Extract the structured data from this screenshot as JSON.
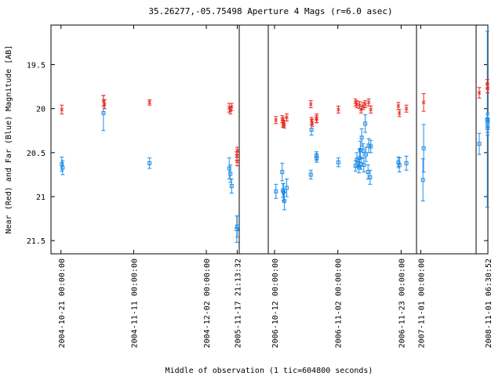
{
  "chart_data": {
    "type": "scatter",
    "title": "35.26277,-05.75498   Aperture 4 Mags (r=6.0 asec)",
    "xlabel": "Middle of observation (1 tic=604800 seconds)",
    "ylabel": "Near (Red) and Far (Blue) Magnitude [AB]",
    "ylim": [
      21.65,
      19.05
    ],
    "y_inverted": true,
    "yticks": [
      19.5,
      20,
      20.5,
      21,
      21.5
    ],
    "ytick_labels": [
      "19.5",
      "20",
      "20.5",
      "21",
      "21.5"
    ],
    "grid": false,
    "x_axis_note": "Broken time axis: four segments separated by vertical lines; x values are seconds from the start of each segment's first tick label.",
    "segments": [
      {
        "tick_labels": [
          "2004-10-21 00:00:00",
          "2004-11-11 00:00:00",
          "2004-12-02 00:00:00",
          "2005-11-17 21:13:32"
        ],
        "x_range_s": [
          -250000,
          4450000
        ],
        "ticks_s": [
          0,
          1814400,
          3628800,
          4400012
        ]
      },
      {
        "tick_labels": [
          "2006-10-12 00:00:00",
          "2006-11-02 00:00:00",
          "2006-11-23 00:00:00"
        ],
        "x_range_s": [
          -180000,
          4070000
        ],
        "ticks_s": [
          0,
          1814400,
          3628800
        ]
      },
      {
        "tick_labels": [
          "2007-11-01 00:00:00"
        ],
        "x_range_s": [
          -120000,
          1550000
        ],
        "ticks_s": [
          0
        ]
      },
      {
        "tick_labels": [
          "2008-11-01 06:30:52"
        ],
        "x_range_s": [
          -6000,
          0
        ],
        "ticks_s": [
          0
        ]
      }
    ],
    "series": [
      {
        "name": "Near (Red)",
        "color": "#e8281e",
        "marker": "x",
        "points": [
          {
            "s": 0,
            "x": 20000,
            "y": 20.01,
            "err": 0.05
          },
          {
            "s": 0,
            "x": 1060000,
            "y": 19.91,
            "err": 0.06
          },
          {
            "s": 0,
            "x": 1090000,
            "y": 19.95,
            "err": 0.05
          },
          {
            "s": 0,
            "x": 2210000,
            "y": 19.93,
            "err": 0.03
          },
          {
            "s": 0,
            "x": 4200000,
            "y": 19.99,
            "err": 0.05
          },
          {
            "s": 0,
            "x": 4230000,
            "y": 20.02,
            "err": 0.04
          },
          {
            "s": 0,
            "x": 4260000,
            "y": 19.98,
            "err": 0.04
          },
          {
            "s": 0,
            "x": 4400000,
            "y": 20.48,
            "err": 0.04
          },
          {
            "s": 0,
            "x": 4390000,
            "y": 20.54,
            "err": 0.05
          },
          {
            "s": 0,
            "x": 4395000,
            "y": 20.6,
            "err": 0.05
          },
          {
            "s": 1,
            "x": 40000,
            "y": 20.13,
            "err": 0.04
          },
          {
            "s": 1,
            "x": 220000,
            "y": 20.12,
            "err": 0.04
          },
          {
            "s": 1,
            "x": 240000,
            "y": 20.17,
            "err": 0.04
          },
          {
            "s": 1,
            "x": 260000,
            "y": 20.15,
            "err": 0.05
          },
          {
            "s": 1,
            "x": 280000,
            "y": 20.18,
            "err": 0.04
          },
          {
            "s": 1,
            "x": 350000,
            "y": 20.1,
            "err": 0.04
          },
          {
            "s": 1,
            "x": 1040000,
            "y": 19.95,
            "err": 0.04
          },
          {
            "s": 1,
            "x": 1060000,
            "y": 20.14,
            "err": 0.04
          },
          {
            "s": 1,
            "x": 1080000,
            "y": 20.16,
            "err": 0.04
          },
          {
            "s": 1,
            "x": 1200000,
            "y": 20.12,
            "err": 0.04
          },
          {
            "s": 1,
            "x": 1210000,
            "y": 20.11,
            "err": 0.05
          },
          {
            "s": 1,
            "x": 1830000,
            "y": 20.01,
            "err": 0.04
          },
          {
            "s": 1,
            "x": 2320000,
            "y": 19.93,
            "err": 0.04
          },
          {
            "s": 1,
            "x": 2360000,
            "y": 19.95,
            "err": 0.04
          },
          {
            "s": 1,
            "x": 2440000,
            "y": 19.96,
            "err": 0.04
          },
          {
            "s": 1,
            "x": 2480000,
            "y": 20.01,
            "err": 0.04
          },
          {
            "s": 1,
            "x": 2540000,
            "y": 19.97,
            "err": 0.04
          },
          {
            "s": 1,
            "x": 2600000,
            "y": 19.95,
            "err": 0.04
          },
          {
            "s": 1,
            "x": 2700000,
            "y": 19.93,
            "err": 0.04
          },
          {
            "s": 1,
            "x": 2760000,
            "y": 20.01,
            "err": 0.04
          },
          {
            "s": 1,
            "x": 3550000,
            "y": 19.97,
            "err": 0.04
          },
          {
            "s": 1,
            "x": 3580000,
            "y": 20.05,
            "err": 0.04
          },
          {
            "s": 1,
            "x": 3780000,
            "y": 20.0,
            "err": 0.04
          },
          {
            "s": 2,
            "x": 80000,
            "y": 19.93,
            "err": 0.1
          },
          {
            "s": 3,
            "x": -4400,
            "y": 19.82,
            "err": 0.06
          },
          {
            "s": 3,
            "x": -300,
            "y": 19.72,
            "err": 0.05
          },
          {
            "s": 3,
            "x": -150,
            "y": 19.77,
            "err": 0.05
          }
        ]
      },
      {
        "name": "Far (Blue)",
        "color": "#1e8ce8",
        "marker": "square",
        "points": [
          {
            "s": 0,
            "x": 20000,
            "y": 20.63,
            "err": 0.08
          },
          {
            "s": 0,
            "x": 40000,
            "y": 20.67,
            "err": 0.08
          },
          {
            "s": 0,
            "x": 1060000,
            "y": 20.05,
            "err": 0.2
          },
          {
            "s": 0,
            "x": 2210000,
            "y": 20.62,
            "err": 0.06
          },
          {
            "s": 0,
            "x": 4200000,
            "y": 20.68,
            "err": 0.12
          },
          {
            "s": 0,
            "x": 4230000,
            "y": 20.74,
            "err": 0.1
          },
          {
            "s": 0,
            "x": 4260000,
            "y": 20.88,
            "err": 0.08
          },
          {
            "s": 0,
            "x": 4400000,
            "y": 21.34,
            "err": 0.12
          },
          {
            "s": 0,
            "x": 4390000,
            "y": 21.37,
            "err": 0.15
          },
          {
            "s": 1,
            "x": 40000,
            "y": 20.94,
            "err": 0.08
          },
          {
            "s": 1,
            "x": 220000,
            "y": 20.72,
            "err": 0.1
          },
          {
            "s": 1,
            "x": 240000,
            "y": 20.93,
            "err": 0.08
          },
          {
            "s": 1,
            "x": 260000,
            "y": 20.95,
            "err": 0.1
          },
          {
            "s": 1,
            "x": 280000,
            "y": 21.05,
            "err": 0.1
          },
          {
            "s": 1,
            "x": 350000,
            "y": 20.9,
            "err": 0.1
          },
          {
            "s": 1,
            "x": 1040000,
            "y": 20.75,
            "err": 0.05
          },
          {
            "s": 1,
            "x": 1060000,
            "y": 20.24,
            "err": 0.06
          },
          {
            "s": 1,
            "x": 1200000,
            "y": 20.54,
            "err": 0.05
          },
          {
            "s": 1,
            "x": 1210000,
            "y": 20.56,
            "err": 0.05
          },
          {
            "s": 1,
            "x": 1830000,
            "y": 20.61,
            "err": 0.05
          },
          {
            "s": 1,
            "x": 2320000,
            "y": 20.65,
            "err": 0.06
          },
          {
            "s": 1,
            "x": 2360000,
            "y": 20.58,
            "err": 0.08
          },
          {
            "s": 1,
            "x": 2400000,
            "y": 20.62,
            "err": 0.05
          },
          {
            "s": 1,
            "x": 2420000,
            "y": 20.67,
            "err": 0.06
          },
          {
            "s": 1,
            "x": 2440000,
            "y": 20.56,
            "err": 0.1
          },
          {
            "s": 1,
            "x": 2460000,
            "y": 20.47,
            "err": 0.1
          },
          {
            "s": 1,
            "x": 2480000,
            "y": 20.63,
            "err": 0.06
          },
          {
            "s": 1,
            "x": 2500000,
            "y": 20.33,
            "err": 0.1
          },
          {
            "s": 1,
            "x": 2540000,
            "y": 20.48,
            "err": 0.08
          },
          {
            "s": 1,
            "x": 2560000,
            "y": 20.64,
            "err": 0.08
          },
          {
            "s": 1,
            "x": 2600000,
            "y": 20.17,
            "err": 0.1
          },
          {
            "s": 1,
            "x": 2620000,
            "y": 20.52,
            "err": 0.08
          },
          {
            "s": 1,
            "x": 2680000,
            "y": 20.72,
            "err": 0.08
          },
          {
            "s": 1,
            "x": 2700000,
            "y": 20.42,
            "err": 0.08
          },
          {
            "s": 1,
            "x": 2740000,
            "y": 20.78,
            "err": 0.08
          },
          {
            "s": 1,
            "x": 2760000,
            "y": 20.43,
            "err": 0.07
          },
          {
            "s": 1,
            "x": 3550000,
            "y": 20.61,
            "err": 0.06
          },
          {
            "s": 1,
            "x": 3580000,
            "y": 20.64,
            "err": 0.08
          },
          {
            "s": 1,
            "x": 3780000,
            "y": 20.62,
            "err": 0.08
          },
          {
            "s": 2,
            "x": 80000,
            "y": 20.45,
            "err": 0.27
          },
          {
            "s": 2,
            "x": 60000,
            "y": 20.81,
            "err": 0.24
          },
          {
            "s": 3,
            "x": -4400,
            "y": 20.4,
            "err": 0.12
          },
          {
            "s": 3,
            "x": -300,
            "y": 20.12,
            "err": 1.0
          },
          {
            "s": 3,
            "x": -200,
            "y": 20.17,
            "err": 0.1
          },
          {
            "s": 3,
            "x": -150,
            "y": 20.22,
            "err": 0.08
          },
          {
            "s": 3,
            "x": -50,
            "y": 20.13,
            "err": 0.08
          }
        ]
      }
    ]
  }
}
